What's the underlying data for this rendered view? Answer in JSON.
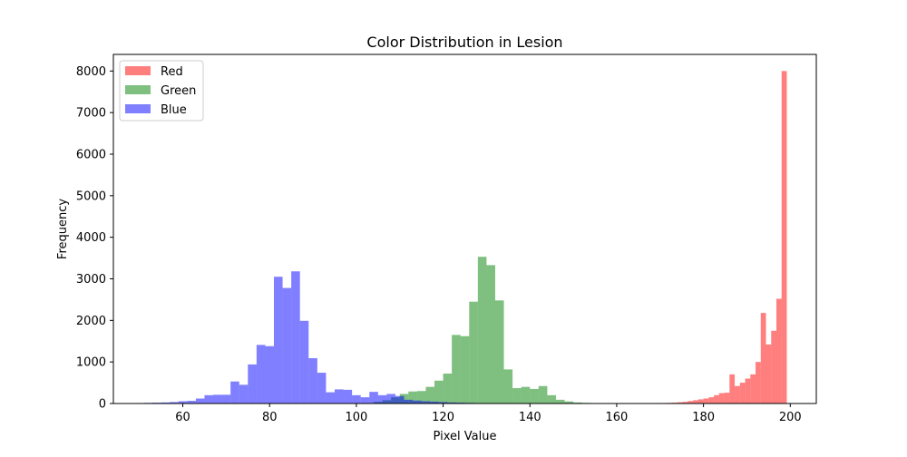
{
  "chart_data": {
    "type": "histogram",
    "title": "Color Distribution in Lesion",
    "xlabel": "Pixel Value",
    "ylabel": "Frequency",
    "xlim": [
      44,
      206
    ],
    "ylim": [
      0,
      8400
    ],
    "xticks": [
      60,
      80,
      100,
      120,
      140,
      160,
      180,
      200
    ],
    "yticks": [
      0,
      1000,
      2000,
      3000,
      4000,
      5000,
      6000,
      7000,
      8000
    ],
    "grid": false,
    "legend_position": "top-left",
    "series": [
      {
        "name": "Red",
        "color": "#ff0000",
        "opacity": 0.5,
        "bin_edges": [
          168.0,
          169.2,
          170.4,
          171.6,
          172.8,
          174.0,
          175.2,
          176.4,
          177.6,
          178.8,
          180.0,
          181.2,
          182.4,
          183.6,
          184.8,
          186.0,
          187.2,
          188.4,
          189.6,
          190.8,
          192.0,
          193.2,
          194.4,
          195.6,
          196.8,
          198.0,
          199.2
        ],
        "counts": [
          5,
          8,
          12,
          15,
          20,
          30,
          40,
          60,
          80,
          100,
          120,
          150,
          200,
          250,
          260,
          700,
          420,
          500,
          600,
          700,
          1000,
          2180,
          1420,
          1750,
          2520,
          8000
        ]
      },
      {
        "name": "Green",
        "color": "#008000",
        "opacity": 0.5,
        "bin_edges": [
          104.0,
          106.0,
          108.0,
          110.0,
          112.0,
          114.0,
          116.0,
          118.0,
          120.0,
          122.0,
          124.0,
          126.0,
          128.0,
          130.0,
          132.0,
          134.0,
          136.0,
          138.0,
          140.0,
          142.0,
          144.0,
          146.0,
          148.0,
          150.0,
          152.0,
          154.0,
          156.0,
          158.0,
          160.0,
          162.0,
          164.0,
          166.0,
          168.0
        ],
        "counts": [
          40,
          80,
          150,
          230,
          290,
          300,
          400,
          550,
          720,
          1650,
          1620,
          2450,
          3530,
          3330,
          2480,
          820,
          370,
          400,
          350,
          420,
          200,
          90,
          50,
          25,
          15,
          10,
          8,
          5,
          5,
          3,
          2,
          2
        ]
      },
      {
        "name": "Blue",
        "color": "#0000ff",
        "opacity": 0.5,
        "bin_edges": [
          51.0,
          53.0,
          55.0,
          57.0,
          59.0,
          61.0,
          63.0,
          65.0,
          67.0,
          69.0,
          71.0,
          73.0,
          75.0,
          77.0,
          79.0,
          81.0,
          83.0,
          85.0,
          87.0,
          89.0,
          91.0,
          93.0,
          95.0,
          97.0,
          99.0,
          101.0,
          103.0,
          105.0,
          107.0,
          109.0,
          111.0,
          113.0,
          115.0,
          117.0,
          119.0,
          121.0,
          123.0,
          125.0,
          127.0,
          129.0,
          131.0,
          133.0,
          135.0
        ],
        "counts": [
          15,
          20,
          25,
          35,
          55,
          65,
          120,
          200,
          210,
          210,
          530,
          450,
          940,
          1410,
          1380,
          3050,
          2780,
          3180,
          1990,
          1090,
          740,
          270,
          340,
          330,
          200,
          150,
          280,
          200,
          230,
          180,
          90,
          70,
          55,
          45,
          35,
          25,
          20,
          15,
          10,
          8,
          5,
          3
        ]
      }
    ]
  }
}
